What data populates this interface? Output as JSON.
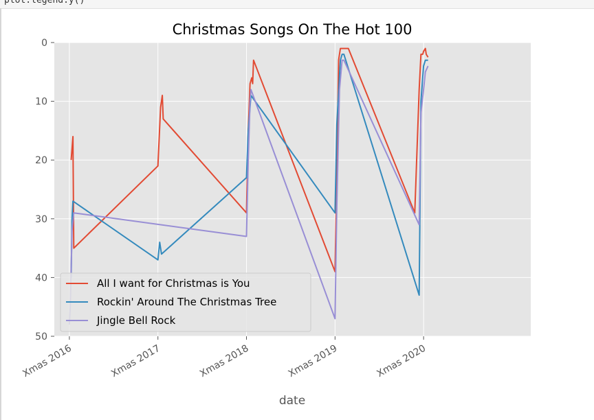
{
  "notebook": {
    "code_fragment": "plot.legend.y()"
  },
  "chart_data": {
    "type": "line",
    "title": "Christmas Songs On The Hot 100",
    "xlabel": "date",
    "ylabel": "",
    "ylim": [
      50,
      0
    ],
    "y_inverted": true,
    "y_ticks": [
      0,
      10,
      20,
      30,
      40,
      50
    ],
    "xlim": [
      -0.17,
      5.21
    ],
    "x_ticks": [
      0,
      1,
      2,
      3,
      4
    ],
    "categories": [
      "Xmas 2016",
      "Xmas 2017",
      "Xmas 2018",
      "Xmas 2019",
      "Xmas 2020"
    ],
    "grid": true,
    "legend_position": "lower-left",
    "background_color": "#e5e5e5",
    "grid_color": "#ffffff",
    "series": [
      {
        "name": "All I want for Christmas is You",
        "color": "#e24a33",
        "x": [
          0.0,
          0.02,
          0.04,
          0.05,
          1.0,
          1.03,
          1.05,
          1.06,
          2.0,
          2.02,
          2.04,
          2.06,
          2.07,
          2.08,
          3.0,
          3.02,
          3.04,
          3.06,
          3.08,
          3.15,
          3.9,
          3.95,
          3.97,
          3.99,
          4.0,
          4.02,
          4.03,
          4.05
        ],
        "values": [
          null,
          20,
          16,
          35,
          21,
          11,
          9,
          13,
          29,
          15,
          7,
          6,
          7,
          3,
          39,
          23,
          3,
          1,
          1,
          1,
          29,
          8,
          2,
          2,
          1.5,
          1,
          2,
          2.5
        ]
      },
      {
        "name": "Rockin' Around The Christmas Tree",
        "color": "#348abd",
        "x": [
          0.02,
          0.03,
          0.04,
          1.0,
          1.02,
          1.04,
          2.0,
          2.02,
          2.05,
          3.0,
          3.02,
          3.06,
          3.08,
          3.1,
          3.95,
          3.97,
          4.0,
          4.02,
          4.05
        ],
        "values": [
          40,
          30,
          27,
          37,
          34,
          36,
          23,
          15,
          9,
          29,
          14,
          3,
          2,
          2,
          43,
          10,
          4,
          3,
          3
        ]
      },
      {
        "name": "Jingle Bell Rock",
        "color": "#988ed5",
        "x": [
          0.0,
          0.01,
          0.03,
          0.05,
          2.0,
          2.02,
          2.04,
          2.05,
          3.0,
          3.02,
          3.05,
          3.08,
          3.1,
          3.95,
          3.97,
          4.0,
          4.02,
          4.05
        ],
        "values": [
          48,
          45,
          32,
          29,
          33,
          20,
          10,
          8,
          47,
          28,
          8,
          3,
          3,
          31,
          12,
          8,
          5,
          4
        ]
      }
    ]
  }
}
